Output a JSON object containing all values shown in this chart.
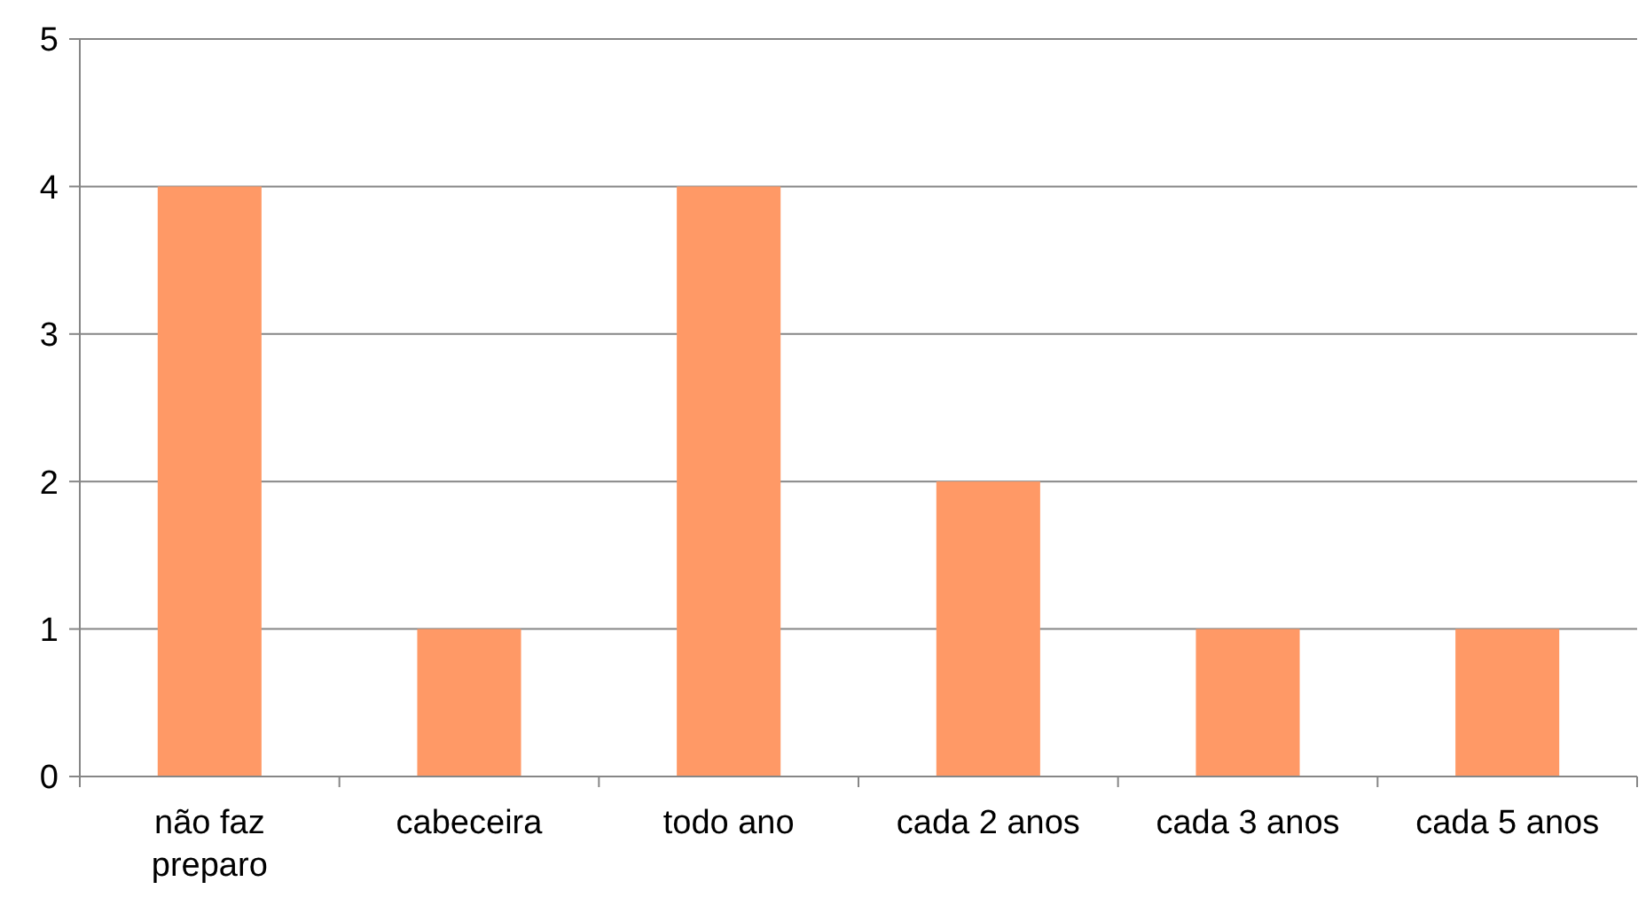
{
  "chart_data": {
    "type": "bar",
    "categories": [
      "não faz preparo",
      "cabeceira",
      "todo ano",
      "cada 2 anos",
      "cada 3 anos",
      "cada 5 anos"
    ],
    "values": [
      4,
      1,
      4,
      2,
      1,
      1
    ],
    "color": "#ff9966",
    "ylim": [
      0,
      5
    ],
    "yticks": [
      0,
      1,
      2,
      3,
      4,
      5
    ],
    "grid": "y"
  }
}
